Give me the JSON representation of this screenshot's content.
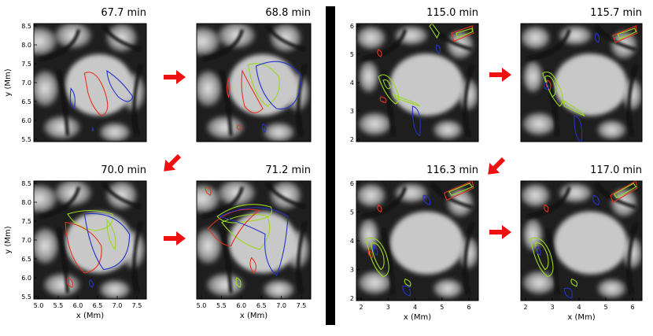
{
  "figure": {
    "panels": [
      {
        "title": "67.7 min",
        "xlabel": "",
        "ylabel": "y (Mm)",
        "xticks": [],
        "yticks": [
          "5.5",
          "6.0",
          "6.5",
          "7.0",
          "7.5",
          "8.0",
          "8.5"
        ]
      },
      {
        "title": "68.8 min",
        "xlabel": "",
        "ylabel": "",
        "xticks": [],
        "yticks": []
      },
      {
        "title": "70.0 min",
        "xlabel": "x (Mm)",
        "ylabel": "y (Mm)",
        "xticks": [
          "5.0",
          "5.5",
          "6.0",
          "6.5",
          "7.0",
          "7.5"
        ],
        "yticks": [
          "5.5",
          "6.0",
          "6.5",
          "7.0",
          "7.5",
          "8.0",
          "8.5"
        ]
      },
      {
        "title": "71.2 min",
        "xlabel": "x (Mm)",
        "ylabel": "",
        "xticks": [
          "5.0",
          "5.5",
          "6.0",
          "6.5",
          "7.0",
          "7.5"
        ],
        "yticks": []
      },
      {
        "title": "115.0 min",
        "xlabel": "",
        "ylabel": "y (Mm)",
        "xticks": [],
        "yticks": [
          "2",
          "3",
          "4",
          "5",
          "6"
        ]
      },
      {
        "title": "115.7 min",
        "xlabel": "",
        "ylabel": "",
        "xticks": [],
        "yticks": []
      },
      {
        "title": "116.3 min",
        "xlabel": "x (Mm)",
        "ylabel": "y (Mm)",
        "xticks": [
          "2",
          "3",
          "4",
          "5",
          "6"
        ],
        "yticks": [
          "2",
          "3",
          "4",
          "5",
          "6"
        ]
      },
      {
        "title": "117.0 min",
        "xlabel": "x (Mm)",
        "ylabel": "",
        "xticks": [
          "2",
          "3",
          "4",
          "5",
          "6"
        ],
        "yticks": []
      }
    ],
    "contour_colors": {
      "red": "#e8321e",
      "blue": "#2233c8",
      "green": "#9ad81e"
    },
    "arrow_color": "#ee1111",
    "divider_color": "#000000",
    "arrows": [
      {
        "direction": "right"
      },
      {
        "direction": "down-left"
      },
      {
        "direction": "right"
      },
      {
        "direction": "right"
      },
      {
        "direction": "down-left"
      },
      {
        "direction": "right"
      }
    ]
  }
}
